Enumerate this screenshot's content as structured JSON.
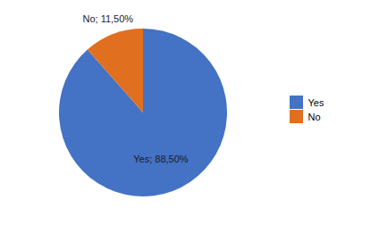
{
  "chart_data": {
    "type": "pie",
    "categories": [
      "Yes",
      "No"
    ],
    "values": [
      88.5,
      11.5
    ],
    "colors": [
      "#4472C4",
      "#E07020"
    ],
    "data_labels": true,
    "value_labels": [
      "Yes; 88,50%",
      "No; 11,50%"
    ],
    "legend": "right"
  }
}
